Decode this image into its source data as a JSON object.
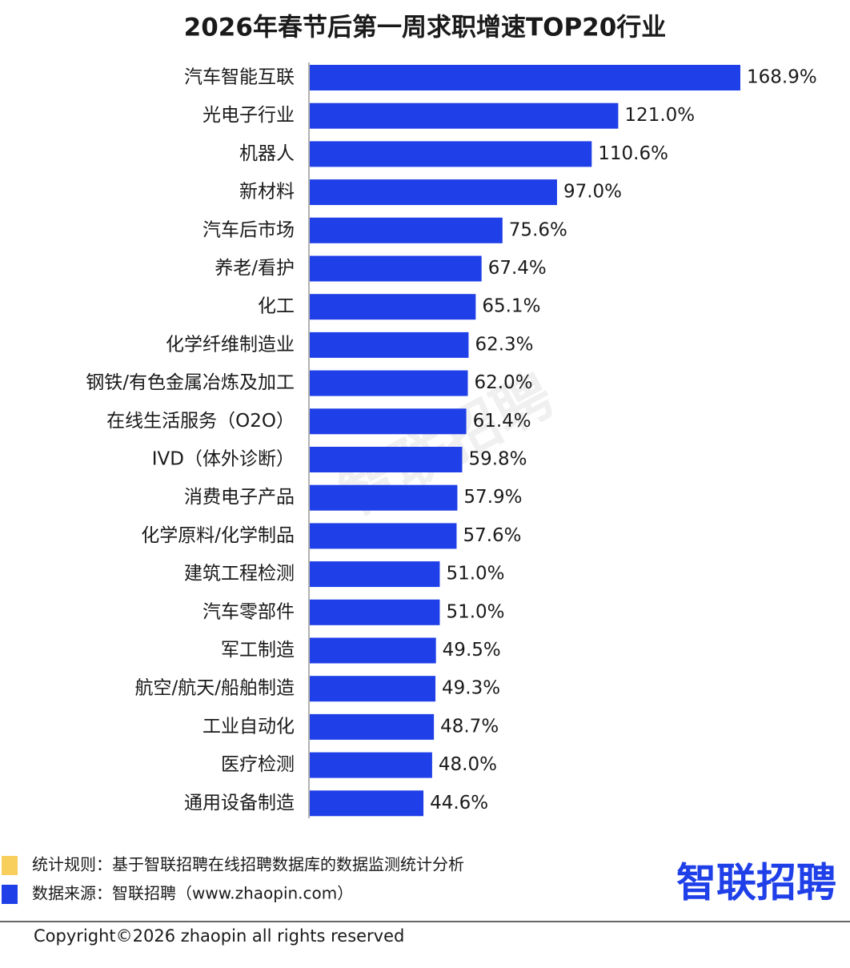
{
  "chart_data": {
    "type": "hbar",
    "title": "2026年春节后第一周求职增速TOP20行业",
    "categories": [
      "汽车智能互联",
      "光电子行业",
      "机器人",
      "新材料",
      "汽车后市场",
      "养老/看护",
      "化工",
      "化学纤维制造业",
      "钢铁/有色金属冶炼及加工",
      "在线生活服务（O2O）",
      "IVD（体外诊断）",
      "消费电子产品",
      "化学原料/化学制品",
      "建筑工程检测",
      "汽车零部件",
      "军工制造",
      "航空/航天/船舶制造",
      "工业自动化",
      "医疗检测",
      "通用设备制造"
    ],
    "values": [
      168.9,
      121.0,
      110.6,
      97.0,
      75.6,
      67.4,
      65.1,
      62.3,
      62.0,
      61.4,
      59.8,
      57.9,
      57.6,
      51.0,
      51.0,
      49.5,
      49.3,
      48.7,
      48.0,
      44.6
    ],
    "value_labels": [
      "168.9%",
      "121.0%",
      "110.6%",
      "97.0%",
      "75.6%",
      "67.4%",
      "65.1%",
      "62.3%",
      "62.0%",
      "61.4%",
      "59.8%",
      "57.9%",
      "57.6%",
      "51.0%",
      "51.0%",
      "49.5%",
      "49.3%",
      "48.7%",
      "48.0%",
      "44.6%"
    ],
    "color": "#1f3fe8"
  },
  "notes": [
    {
      "text": "统计规则：基于智联招聘在线招聘数据库的数据监测统计分析",
      "color": "#f8cf5c"
    },
    {
      "text": "数据来源：智联招聘（www.zhaopin.com）",
      "color": "#1f3fe8"
    }
  ],
  "logo": "智联招聘",
  "watermark": "智联招聘",
  "copyright": "Copyright©2026 zhaopin all rights reserved"
}
